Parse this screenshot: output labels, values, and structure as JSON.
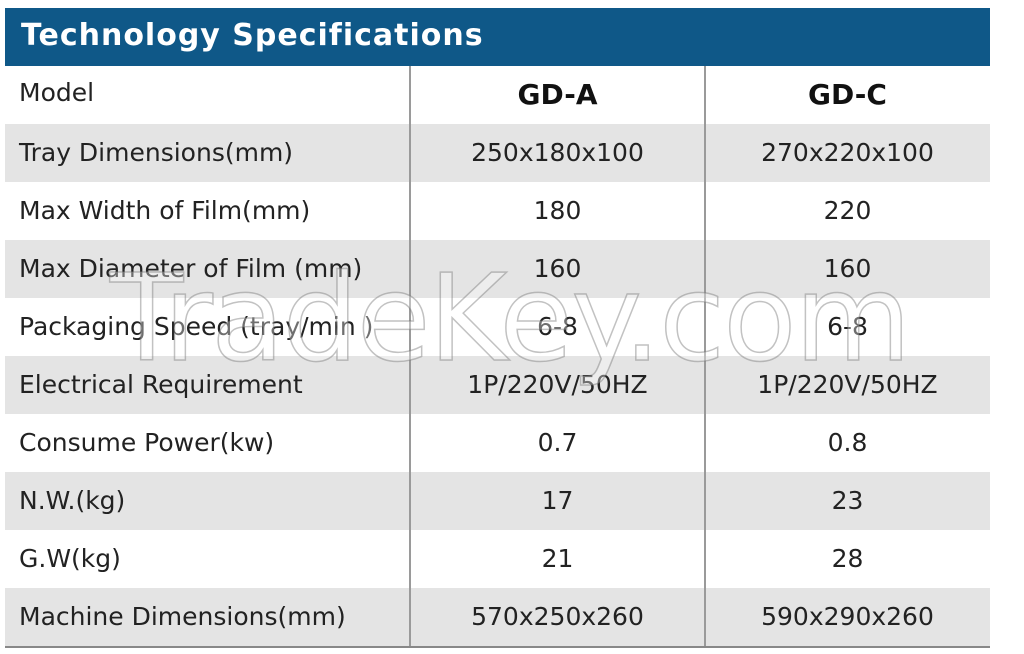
{
  "header": {
    "title": "Technology Specifications"
  },
  "table": {
    "columns": [
      "Model",
      "GD-A",
      "GD-C"
    ],
    "rows": [
      [
        "Tray Dimensions(mm)",
        "250x180x100",
        "270x220x100"
      ],
      [
        "Max Width of Film(mm)",
        "180",
        "220"
      ],
      [
        "Max Diameter of Film (mm)",
        "160",
        "160"
      ],
      [
        "Packaging Speed (tray/min )",
        "6-8",
        "6-8"
      ],
      [
        "Electrical Requirement",
        "1P/220V/50HZ",
        "1P/220V/50HZ"
      ],
      [
        "Consume Power(kw)",
        "0.7",
        "0.8"
      ],
      [
        "N.W.(kg)",
        "17",
        "23"
      ],
      [
        "G.W(kg)",
        "21",
        "28"
      ],
      [
        "Machine Dimensions(mm)",
        "570x250x260",
        "590x290x260"
      ]
    ]
  },
  "watermark": "TradeKey.com"
}
